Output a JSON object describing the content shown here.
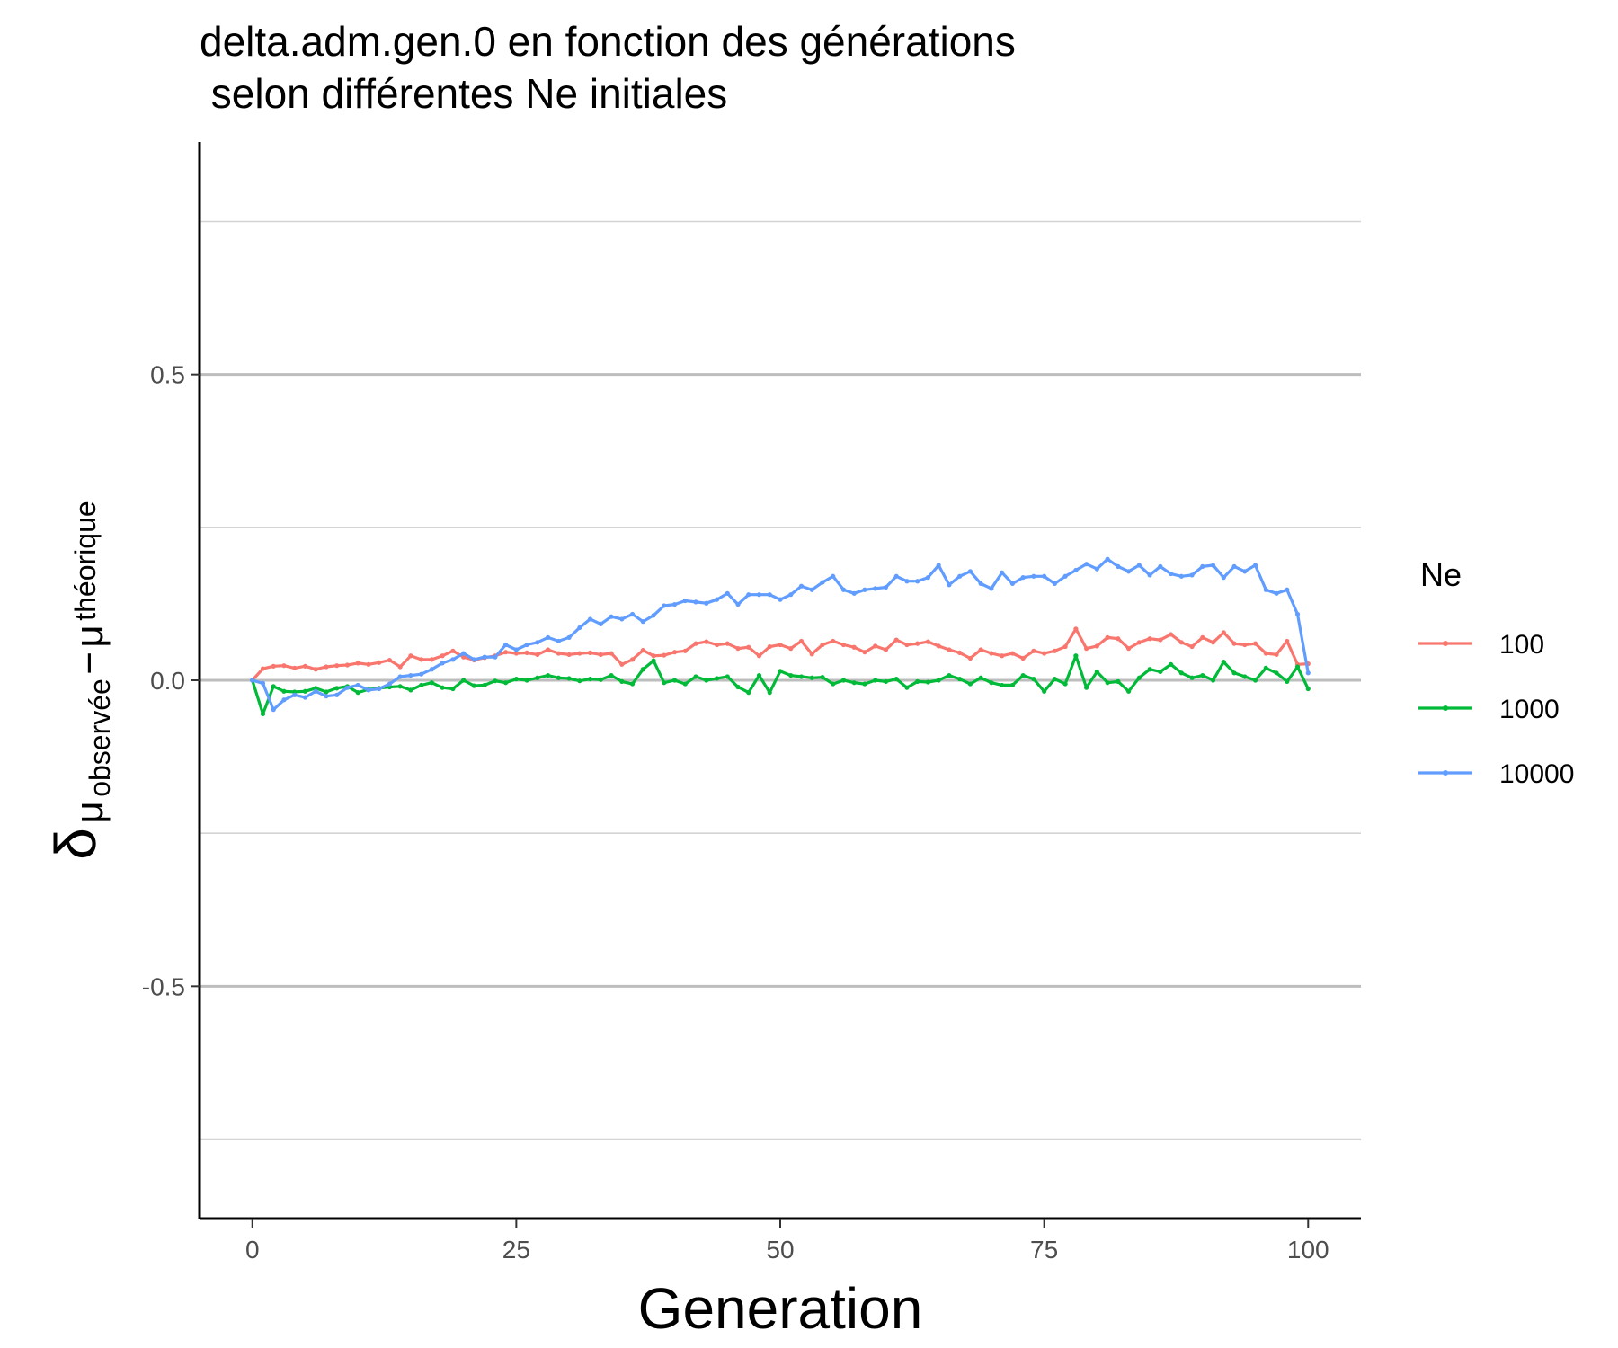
{
  "chart_data": {
    "type": "line",
    "title_line1": "delta.adm.gen.0 en fonction des générations",
    "title_line2": " selon différentes Ne initiales",
    "xlabel": "Generation",
    "ylabel": {
      "symbol": "δ",
      "mu1": "μ",
      "sub1": "observée",
      "minus": "−",
      "mu2": "μ",
      "sub2": "théorique"
    },
    "xlim": [
      -5,
      105
    ],
    "ylim": [
      -0.88,
      0.88
    ],
    "x_ticks": [
      0,
      25,
      50,
      75,
      100
    ],
    "x_tick_labels": [
      "0",
      "25",
      "50",
      "75",
      "100"
    ],
    "y_ticks": [
      0.5,
      0.0,
      -0.5
    ],
    "y_tick_labels": [
      "0.5",
      "0.0",
      "-0.5"
    ],
    "y_minor_gridlines": [
      0.75,
      0.25,
      -0.25,
      -0.75
    ],
    "grid": "horizontal",
    "legend": {
      "title": "Ne",
      "placement": "right"
    },
    "series": [
      {
        "name": "100",
        "color": "#F8766D",
        "values": [
          0.0,
          0.019,
          0.023,
          0.024,
          0.02,
          0.023,
          0.018,
          0.022,
          0.024,
          0.025,
          0.028,
          0.026,
          0.029,
          0.033,
          0.022,
          0.04,
          0.034,
          0.034,
          0.04,
          0.048,
          0.038,
          0.033,
          0.037,
          0.04,
          0.046,
          0.044,
          0.045,
          0.042,
          0.05,
          0.044,
          0.042,
          0.044,
          0.045,
          0.042,
          0.044,
          0.026,
          0.034,
          0.049,
          0.04,
          0.041,
          0.046,
          0.048,
          0.06,
          0.063,
          0.058,
          0.06,
          0.052,
          0.054,
          0.04,
          0.055,
          0.058,
          0.052,
          0.064,
          0.043,
          0.058,
          0.064,
          0.058,
          0.054,
          0.046,
          0.056,
          0.05,
          0.066,
          0.058,
          0.06,
          0.063,
          0.056,
          0.05,
          0.045,
          0.036,
          0.05,
          0.044,
          0.04,
          0.044,
          0.036,
          0.048,
          0.044,
          0.048,
          0.055,
          0.084,
          0.052,
          0.056,
          0.07,
          0.068,
          0.052,
          0.062,
          0.068,
          0.066,
          0.075,
          0.062,
          0.055,
          0.07,
          0.062,
          0.078,
          0.06,
          0.058,
          0.06,
          0.044,
          0.042,
          0.064,
          0.026,
          0.027
        ]
      },
      {
        "name": "1000",
        "color": "#00BA38",
        "values": [
          0.0,
          -0.055,
          -0.01,
          -0.018,
          -0.019,
          -0.018,
          -0.013,
          -0.019,
          -0.013,
          -0.01,
          -0.02,
          -0.015,
          -0.013,
          -0.011,
          -0.01,
          -0.016,
          -0.008,
          -0.004,
          -0.012,
          -0.014,
          0.0,
          -0.009,
          -0.008,
          -0.001,
          -0.004,
          0.002,
          0.0,
          0.004,
          0.008,
          0.004,
          0.003,
          -0.001,
          0.002,
          0.001,
          0.008,
          -0.002,
          -0.006,
          0.018,
          0.032,
          -0.004,
          0.0,
          -0.006,
          0.006,
          0.0,
          0.003,
          0.006,
          -0.011,
          -0.02,
          0.008,
          -0.02,
          0.015,
          0.008,
          0.006,
          0.004,
          0.005,
          -0.006,
          0.0,
          -0.004,
          -0.006,
          0.0,
          -0.002,
          0.002,
          -0.012,
          -0.002,
          -0.003,
          0.0,
          0.008,
          0.002,
          -0.006,
          0.004,
          -0.004,
          -0.008,
          -0.008,
          0.008,
          0.002,
          -0.018,
          0.002,
          -0.006,
          0.04,
          -0.012,
          0.014,
          -0.004,
          -0.002,
          -0.018,
          0.004,
          0.018,
          0.014,
          0.026,
          0.012,
          0.004,
          0.008,
          0.0,
          0.03,
          0.012,
          0.006,
          0.0,
          0.02,
          0.012,
          -0.002,
          0.022,
          -0.014
        ]
      },
      {
        "name": "10000",
        "color": "#619CFF",
        "values": [
          0.0,
          -0.005,
          -0.048,
          -0.032,
          -0.024,
          -0.028,
          -0.018,
          -0.026,
          -0.024,
          -0.012,
          -0.008,
          -0.016,
          -0.014,
          -0.006,
          0.006,
          0.008,
          0.01,
          0.018,
          0.028,
          0.034,
          0.044,
          0.034,
          0.038,
          0.038,
          0.058,
          0.05,
          0.058,
          0.062,
          0.07,
          0.064,
          0.07,
          0.086,
          0.1,
          0.092,
          0.104,
          0.1,
          0.108,
          0.096,
          0.106,
          0.122,
          0.124,
          0.13,
          0.128,
          0.126,
          0.132,
          0.142,
          0.124,
          0.14,
          0.14,
          0.14,
          0.132,
          0.14,
          0.154,
          0.148,
          0.16,
          0.17,
          0.148,
          0.142,
          0.148,
          0.15,
          0.152,
          0.17,
          0.162,
          0.162,
          0.168,
          0.188,
          0.156,
          0.17,
          0.178,
          0.158,
          0.15,
          0.176,
          0.158,
          0.168,
          0.17,
          0.17,
          0.158,
          0.17,
          0.18,
          0.19,
          0.182,
          0.198,
          0.186,
          0.178,
          0.188,
          0.172,
          0.186,
          0.174,
          0.17,
          0.172,
          0.186,
          0.188,
          0.168,
          0.186,
          0.178,
          0.188,
          0.148,
          0.142,
          0.148,
          0.108,
          0.012
        ]
      }
    ]
  }
}
